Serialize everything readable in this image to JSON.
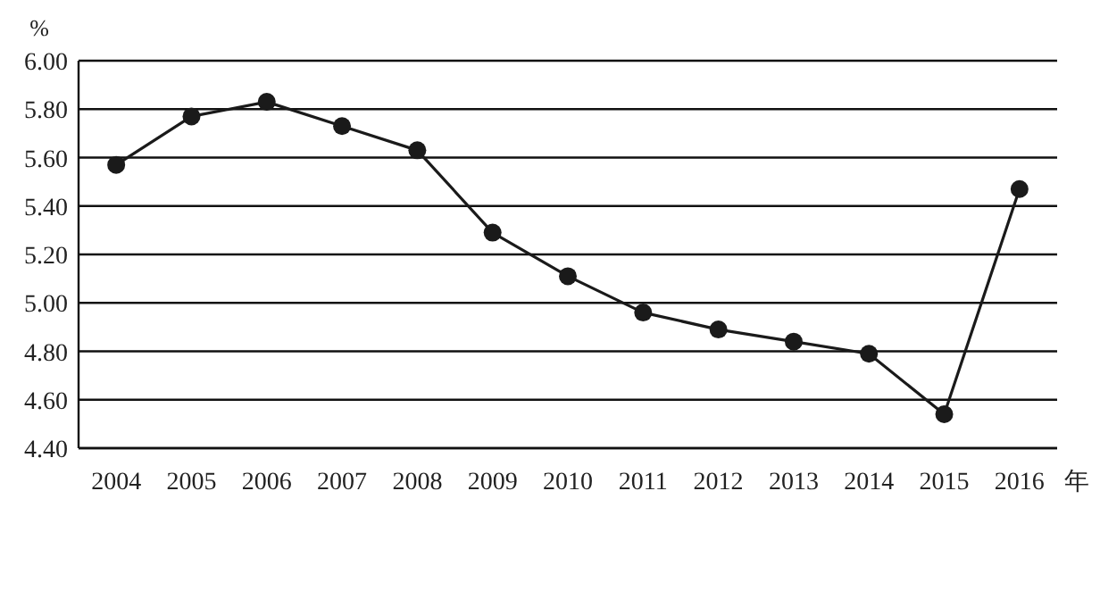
{
  "chart_data": {
    "type": "line",
    "ylabel": "%",
    "xlabel": "年",
    "categories": [
      "2004",
      "2005",
      "2006",
      "2007",
      "2008",
      "2009",
      "2010",
      "2011",
      "2012",
      "2013",
      "2014",
      "2015",
      "2016"
    ],
    "series": [
      {
        "color": "#1a1a1a",
        "values": [
          5.57,
          5.77,
          5.83,
          5.73,
          5.63,
          5.29,
          5.11,
          4.96,
          4.89,
          4.84,
          4.79,
          4.54,
          5.47
        ]
      }
    ],
    "ylim": [
      4.4,
      6.0
    ],
    "yticks": [
      {
        "value": 4.4,
        "label": "4.40"
      },
      {
        "value": 4.6,
        "label": "4.60"
      },
      {
        "value": 4.8,
        "label": "4.80"
      },
      {
        "value": 5.0,
        "label": "5.00"
      },
      {
        "value": 5.2,
        "label": "5.20"
      },
      {
        "value": 5.4,
        "label": "5.40"
      },
      {
        "value": 5.6,
        "label": "5.60"
      },
      {
        "value": 5.8,
        "label": "5.80"
      },
      {
        "value": 6.0,
        "label": "6.00"
      }
    ],
    "grid": "y",
    "marker": "circle",
    "line_style": "solid"
  }
}
